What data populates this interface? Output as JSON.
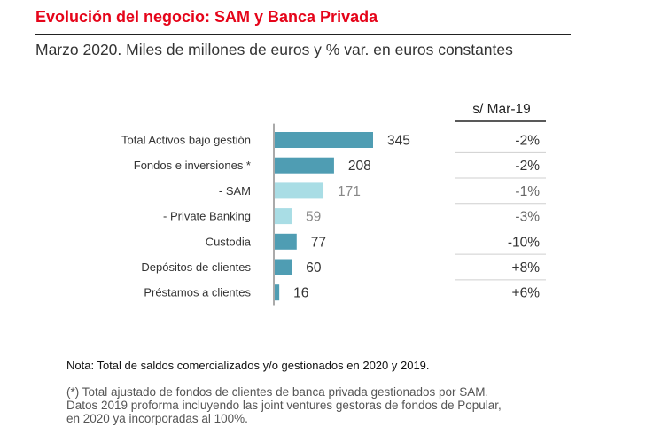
{
  "header": {
    "title": "Evolución del negocio: SAM y Banca Privada",
    "subtitle": "Marzo 2020. Miles de millones de euros y % var. en euros constantes"
  },
  "chart_data": {
    "type": "bar",
    "orientation": "horizontal",
    "title": "Evolución del negocio: SAM y Banca Privada",
    "subtitle": "Marzo 2020. Miles de millones de euros y % var. en euros constantes",
    "categories": [
      "Total Activos bajo gestión",
      "Fondos e inversiones *",
      "- SAM",
      "- Private Banking",
      "Custodia",
      "Depósitos de clientes",
      "Préstamos a clientes"
    ],
    "values": [
      345,
      208,
      171,
      59,
      77,
      60,
      16
    ],
    "value_labels": [
      "345",
      "208",
      "171",
      "59",
      "77",
      "60",
      "16"
    ],
    "variation_header": "s/ Mar-19",
    "variation": [
      "-2%",
      "-2%",
      "-1%",
      "-3%",
      "-10%",
      "+8%",
      "+6%"
    ],
    "xlim": [
      0,
      345
    ],
    "unit": "Miles de millones de euros",
    "colors": {
      "primary_bar": "#4f9db3",
      "secondary_bar": "#a9dde5",
      "primary_text": "#333333",
      "secondary_text": "#888888",
      "accent": "#e5051a"
    },
    "bar_styles": [
      "primary",
      "primary",
      "secondary",
      "secondary",
      "primary",
      "primary",
      "primary"
    ]
  },
  "notes": {
    "nota": "Nota: Total de saldos comercializados y/o gestionados en 2020 y 2019.",
    "footnote_lines": [
      "(*) Total ajustado de fondos de clientes de banca privada gestionados por SAM.",
      "Datos 2019 proforma incluyendo las joint ventures gestoras de fondos de Popular,",
      "en 2020 ya incorporadas al 100%."
    ]
  }
}
